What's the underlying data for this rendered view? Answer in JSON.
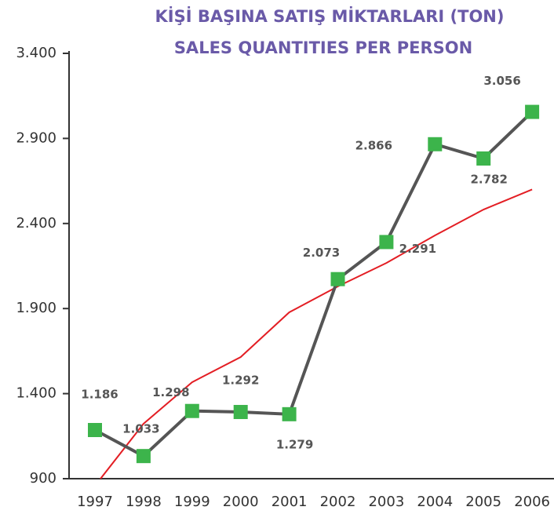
{
  "chart_data": {
    "type": "line",
    "title": "KİŞİ BAŞINA SATIŞ MİKTARLARI (TON)",
    "subtitle": "SALES QUANTITIES PER PERSON",
    "categories": [
      "1997",
      "1998",
      "1999",
      "2000",
      "2001",
      "2002",
      "2003",
      "2004",
      "2005",
      "2006"
    ],
    "series": [
      {
        "color": "#555555",
        "marker_color": "#3cb44b",
        "values": [
          1186,
          1033,
          1298,
          1292,
          1279,
          2073,
          2291,
          2866,
          2782,
          3056
        ],
        "value_labels": [
          "1.186",
          "1.033",
          "1.298",
          "1.292",
          "1.279",
          "2.073",
          "2.291",
          "2.866",
          "2.782",
          "3.056"
        ]
      },
      {
        "color": "#e31e24",
        "values": [
          858,
          1223,
          1467,
          1615,
          1878,
          2030,
          2168,
          2330,
          2482,
          2600
        ]
      }
    ],
    "ylim": [
      900,
      3400
    ],
    "yticks": [
      {
        "value": 900,
        "label": "900"
      },
      {
        "value": 1400,
        "label": "1.400"
      },
      {
        "value": 1900,
        "label": "1.900"
      },
      {
        "value": 2400,
        "label": "2.400"
      },
      {
        "value": 2900,
        "label": "2.900"
      },
      {
        "value": 3400,
        "label": "3.400"
      }
    ]
  }
}
